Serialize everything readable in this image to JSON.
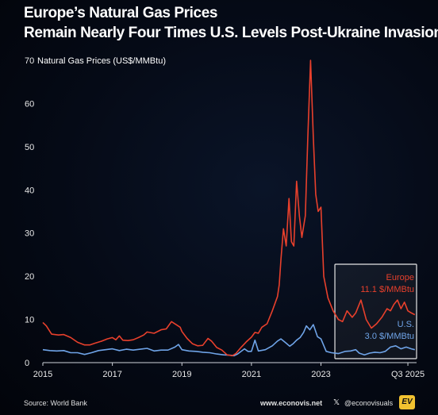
{
  "title_line1": "Europe’s Natural Gas Prices",
  "title_line2": "Remain Nearly Four Times U.S. Levels Post-Ukraine Invasion",
  "footer": {
    "source": "Source: World Bank",
    "site": "www.econovis.net",
    "handle": "@econovisuals",
    "logo": "EV",
    "x_icon": "x-logo-icon"
  },
  "colors": {
    "europe": "#e8402c",
    "us": "#6fa4e8",
    "highlight_box": "#e6e6e6"
  },
  "chart_data": {
    "type": "line",
    "ylabel": "Natural Gas Prices (US$/MMBtu)",
    "ylim": [
      0,
      70
    ],
    "yticks": [
      0,
      10,
      20,
      30,
      40,
      50,
      60,
      70
    ],
    "xlim": [
      2015.0,
      2025.75
    ],
    "xticks": [
      {
        "value": 2015,
        "label": "2015"
      },
      {
        "value": 2017,
        "label": "2017"
      },
      {
        "value": 2019,
        "label": "2019"
      },
      {
        "value": 2021,
        "label": "2021"
      },
      {
        "value": 2023,
        "label": "2023"
      },
      {
        "value": 2025.5,
        "label": "Q3 2025"
      }
    ],
    "grid": false,
    "annotations": [
      {
        "series": "Europe",
        "name": "Europe",
        "value_label": "11.1 $/MMBtu"
      },
      {
        "series": "U.S.",
        "name": "U.S.",
        "value_label": "3.0 $/MMBtu"
      }
    ],
    "highlight_range": [
      2023.4,
      2025.75
    ],
    "series": [
      {
        "name": "Europe",
        "color": "#e8402c",
        "x": [
          2015.0,
          2015.1,
          2015.25,
          2015.45,
          2015.6,
          2015.8,
          2016.0,
          2016.2,
          2016.35,
          2016.5,
          2016.7,
          2016.85,
          2017.0,
          2017.1,
          2017.2,
          2017.3,
          2017.45,
          2017.6,
          2017.75,
          2017.9,
          2018.0,
          2018.2,
          2018.4,
          2018.55,
          2018.7,
          2018.85,
          2018.95,
          2019.0,
          2019.15,
          2019.3,
          2019.45,
          2019.6,
          2019.75,
          2019.85,
          2020.0,
          2020.15,
          2020.3,
          2020.45,
          2020.55,
          2020.7,
          2020.85,
          2021.0,
          2021.1,
          2021.2,
          2021.3,
          2021.45,
          2021.6,
          2021.75,
          2021.8,
          2021.85,
          2021.92,
          2022.0,
          2022.08,
          2022.15,
          2022.22,
          2022.3,
          2022.38,
          2022.45,
          2022.55,
          2022.62,
          2022.7,
          2022.78,
          2022.85,
          2022.92,
          2023.0,
          2023.08,
          2023.2,
          2023.35,
          2023.5,
          2023.62,
          2023.75,
          2023.9,
          2024.0,
          2024.15,
          2024.3,
          2024.45,
          2024.6,
          2024.75,
          2024.9,
          2025.0,
          2025.1,
          2025.2,
          2025.3,
          2025.4,
          2025.5,
          2025.6,
          2025.7
        ],
        "values": [
          9.3,
          8.5,
          6.6,
          6.4,
          6.5,
          5.8,
          4.7,
          4.1,
          4.1,
          4.5,
          5.0,
          5.5,
          5.8,
          5.3,
          6.2,
          5.2,
          5.1,
          5.3,
          5.8,
          6.4,
          7.1,
          6.8,
          7.6,
          7.8,
          9.5,
          8.7,
          8.2,
          7.2,
          5.6,
          4.4,
          3.9,
          4.0,
          5.6,
          5.0,
          3.5,
          2.9,
          1.8,
          1.6,
          2.1,
          3.5,
          4.8,
          5.9,
          7.0,
          6.8,
          8.2,
          9.0,
          12.0,
          15.3,
          18.0,
          24.0,
          31.0,
          27.0,
          38.0,
          28.0,
          27.0,
          42.0,
          34.0,
          29.0,
          34.0,
          52.0,
          70.0,
          52.0,
          39.0,
          35.0,
          36.0,
          20.0,
          15.0,
          12.0,
          10.0,
          9.5,
          12.0,
          10.5,
          11.5,
          14.5,
          10.0,
          8.0,
          9.0,
          10.5,
          12.5,
          12.0,
          13.5,
          14.5,
          12.5,
          14.0,
          12.0,
          11.5,
          11.1
        ]
      },
      {
        "name": "U.S.",
        "color": "#6fa4e8",
        "x": [
          2015.0,
          2015.2,
          2015.4,
          2015.6,
          2015.8,
          2016.0,
          2016.2,
          2016.4,
          2016.6,
          2016.8,
          2017.0,
          2017.2,
          2017.4,
          2017.6,
          2017.8,
          2018.0,
          2018.2,
          2018.4,
          2018.6,
          2018.8,
          2018.9,
          2019.0,
          2019.2,
          2019.4,
          2019.6,
          2019.8,
          2020.0,
          2020.2,
          2020.4,
          2020.5,
          2020.6,
          2020.8,
          2020.9,
          2021.0,
          2021.1,
          2021.2,
          2021.4,
          2021.6,
          2021.75,
          2021.85,
          2022.0,
          2022.1,
          2022.2,
          2022.3,
          2022.4,
          2022.5,
          2022.58,
          2022.68,
          2022.78,
          2022.9,
          2023.0,
          2023.15,
          2023.3,
          2023.5,
          2023.7,
          2023.85,
          2024.0,
          2024.1,
          2024.25,
          2024.4,
          2024.55,
          2024.7,
          2024.85,
          2025.0,
          2025.15,
          2025.3,
          2025.45,
          2025.6,
          2025.7
        ],
        "values": [
          3.0,
          2.8,
          2.7,
          2.8,
          2.3,
          2.3,
          1.9,
          2.3,
          2.8,
          3.0,
          3.2,
          2.8,
          3.1,
          2.9,
          3.1,
          3.3,
          2.7,
          2.9,
          2.9,
          3.6,
          4.2,
          3.0,
          2.7,
          2.6,
          2.4,
          2.3,
          2.0,
          1.8,
          1.7,
          1.6,
          2.0,
          3.2,
          2.6,
          2.6,
          5.2,
          2.7,
          3.0,
          3.9,
          5.0,
          5.5,
          4.5,
          3.8,
          4.4,
          5.2,
          5.8,
          7.0,
          8.5,
          7.6,
          8.8,
          6.0,
          5.5,
          2.6,
          2.3,
          2.1,
          2.6,
          2.7,
          3.0,
          2.2,
          1.8,
          2.2,
          2.4,
          2.3,
          2.6,
          3.6,
          3.9,
          3.2,
          3.6,
          3.2,
          3.0
        ]
      }
    ]
  }
}
